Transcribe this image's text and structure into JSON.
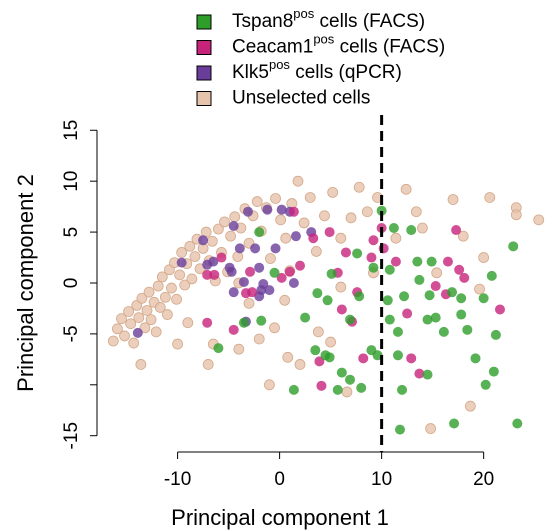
{
  "chart_data": {
    "type": "scatter",
    "xlabel": "Principal component 1",
    "ylabel": "Principal component 2",
    "xlim": [
      -17.9,
      26.7
    ],
    "ylim": [
      -16.6,
      16.5
    ],
    "xticks": [
      -10,
      0,
      10,
      20
    ],
    "yticks": [
      15,
      10,
      5,
      0,
      -5,
      {
        "value": -10,
        "label": null
      },
      -15
    ],
    "vline": 10,
    "legend": "top",
    "series": [
      {
        "name": "Tspan8",
        "name_sup": "pos",
        "name_suffix": " cells (FACS)",
        "color": "#2e9e2a",
        "x": [
          -2.0,
          -6.0,
          -1.8,
          -3.5,
          -0.5,
          1.4,
          2.5,
          3.7,
          4.7,
          3.5,
          4.5,
          5.1,
          4.9,
          6.1,
          5.7,
          6.9,
          7.6,
          7.8,
          6.9,
          8.0,
          9.0,
          9.2,
          9.6,
          10.0,
          10.8,
          11.2,
          11.6,
          12.0,
          11.6,
          10.8,
          10.6,
          11.8,
          12.2,
          12.9,
          13.5,
          13.7,
          14.5,
          14.7,
          14.9,
          15.3,
          16.1,
          16.9,
          17.8,
          17.8,
          18.4,
          19.2,
          20.0,
          20.2,
          20.8,
          21.0,
          21.2,
          14.5,
          22.9,
          23.3,
          17.1
        ],
        "values": [
          5.0,
          -6.4,
          -3.7,
          -3.9,
          1.0,
          -10.5,
          -3.4,
          -1.0,
          -1.7,
          -6.6,
          -7.1,
          0.9,
          -7.3,
          -8.8,
          -10.5,
          -9.5,
          2.9,
          -1.3,
          -3.6,
          -10.3,
          -6.6,
          1.5,
          -7.1,
          7.1,
          -3.6,
          5.4,
          -4.8,
          -10.5,
          -7.1,
          1.3,
          -1.7,
          -14.4,
          -1.3,
          5.2,
          2.1,
          0.3,
          -3.6,
          -1.2,
          2.1,
          -3.4,
          -4.8,
          -0.9,
          -1.5,
          -3.1,
          -4.6,
          -7.4,
          -1.5,
          -10.0,
          0.7,
          -8.7,
          -5.1,
          -9.0,
          3.6,
          -13.8,
          -13.8
        ]
      },
      {
        "name": "Ceacam1",
        "name_sup": "pos",
        "name_suffix": " cells (FACS)",
        "color": "#c8237a",
        "x": [
          -7.1,
          -4.5,
          -2.9,
          -3.3,
          -2.7,
          0.2,
          1.4,
          3.3,
          4.9,
          5.7,
          6.1,
          6.5,
          7.1,
          7.6,
          9.0,
          9.2,
          10.0,
          10.2,
          3.9,
          4.1,
          8.2,
          11.4,
          12.5,
          12.9,
          13.7,
          15.3,
          16.3,
          17.3,
          17.6,
          16.5,
          18.1,
          21.6,
          -7.1,
          -6.4,
          -5.7,
          1.0,
          2.0
        ],
        "values": [
          -3.9,
          -4.6,
          1.1,
          -1.0,
          -0.9,
          0.5,
          7.0,
          4.4,
          5.0,
          1.0,
          -2.6,
          3.0,
          -3.8,
          -0.9,
          2.5,
          4.2,
          5.4,
          3.4,
          -7.7,
          -10.1,
          -7.4,
          2.1,
          -3.0,
          -7.4,
          -8.9,
          -0.3,
          -1.1,
          5.2,
          1.3,
          2.1,
          0.5,
          -2.6,
          0.8,
          0.8,
          2.5,
          1.1,
          1.7
        ]
      },
      {
        "name": "Klk5",
        "name_sup": "pos",
        "name_suffix": " cells (qPCR)",
        "color": "#6a3d9a",
        "x": [
          -13.9,
          -9.6,
          -7.5,
          -7.1,
          -6.5,
          -4.9,
          -4.5,
          -3.9,
          -3.5,
          -4.7,
          -3.1,
          -2.4,
          -2.0,
          -1.8,
          -1.0,
          -1.2,
          -0.4,
          0.2,
          1.6,
          1.4,
          3.1,
          -4.5,
          -2.0,
          -1.6,
          -3.3,
          1.0
        ],
        "values": [
          -4.9,
          2.0,
          4.2,
          1.8,
          2.1,
          1.5,
          5.6,
          3.4,
          0.1,
          1.1,
          7.0,
          3.4,
          1.5,
          -0.7,
          -0.7,
          7.2,
          3.4,
          7.2,
          4.6,
          0.0,
          5.0,
          -0.9,
          -1.3,
          -0.1,
          -3.8,
          7.0
        ]
      },
      {
        "name": "Unselected cells",
        "color": "#e6c3ab",
        "x": [
          -16.3,
          -15.9,
          -15.5,
          -15.2,
          -14.8,
          -14.6,
          -14.3,
          -14.0,
          -13.8,
          -13.5,
          -13.2,
          -13.0,
          -12.8,
          -12.6,
          -12.3,
          -12.1,
          -11.9,
          -11.7,
          -11.5,
          -11.2,
          -11.0,
          -10.8,
          -10.6,
          -10.3,
          -10.1,
          -9.8,
          -9.6,
          -9.3,
          -9.1,
          -8.8,
          -8.6,
          -8.3,
          -8.1,
          -7.8,
          -7.5,
          -7.2,
          -6.9,
          -6.6,
          -6.3,
          -6.0,
          -5.7,
          -5.4,
          -5.1,
          -4.8,
          -4.4,
          -4.1,
          -3.8,
          -3.4,
          -3.0,
          -2.6,
          -2.2,
          -1.8,
          -1.3,
          -0.9,
          -0.4,
          0.1,
          0.6,
          1.2,
          1.8,
          2.4,
          3.0,
          3.6,
          4.4,
          5.2,
          6.0,
          7.0,
          7.8,
          8.6,
          9.6,
          11.4,
          12.4,
          14.0,
          15.4,
          17.0,
          18.0,
          19.6,
          20.6,
          23.2,
          25.4,
          -13.6,
          -10.0,
          -7.0,
          -4.0,
          -3.0,
          -1.0,
          2.0,
          5.0,
          -0.5,
          14.8,
          18.7,
          0.8,
          6.6,
          3.8,
          -6.5,
          -9.0,
          1.0,
          0.5,
          -2.0,
          9.2,
          13.4,
          23.2,
          20.0,
          6.0,
          -4.0
        ],
        "values": [
          -5.7,
          -4.5,
          -3.5,
          -5.2,
          -2.8,
          -4.0,
          -5.9,
          -2.2,
          -3.4,
          -1.5,
          -4.4,
          -2.7,
          -0.9,
          -3.6,
          -1.9,
          -4.8,
          -0.3,
          -2.4,
          0.6,
          -1.4,
          -3.1,
          1.3,
          -0.5,
          2.0,
          -1.6,
          0.8,
          3.0,
          -0.2,
          1.9,
          3.6,
          0.4,
          2.6,
          4.3,
          1.4,
          3.4,
          5.0,
          2.2,
          4.1,
          0.2,
          5.3,
          3.0,
          6.0,
          1.1,
          4.6,
          6.5,
          2.6,
          5.4,
          7.3,
          3.9,
          6.6,
          8.0,
          5.1,
          7.4,
          2.4,
          8.3,
          6.2,
          4.4,
          7.8,
          10.0,
          5.9,
          8.4,
          3.1,
          6.6,
          8.9,
          4.4,
          6.4,
          9.4,
          7.0,
          8.4,
          4.4,
          9.2,
          5.4,
          1.0,
          8.2,
          4.6,
          -0.6,
          8.4,
          7.4,
          6.2,
          -8.0,
          -6.0,
          -8.0,
          -6.5,
          -2.0,
          -10.0,
          -8.0,
          -5.8,
          -4.4,
          -14.3,
          -12.1,
          -7.3,
          -10.7,
          -4.8,
          -6.0,
          -3.9,
          1.2,
          -1.7,
          -5.5,
          1.0,
          7.0,
          6.7,
          2.5,
          -0.4,
          0.0
        ]
      }
    ]
  }
}
